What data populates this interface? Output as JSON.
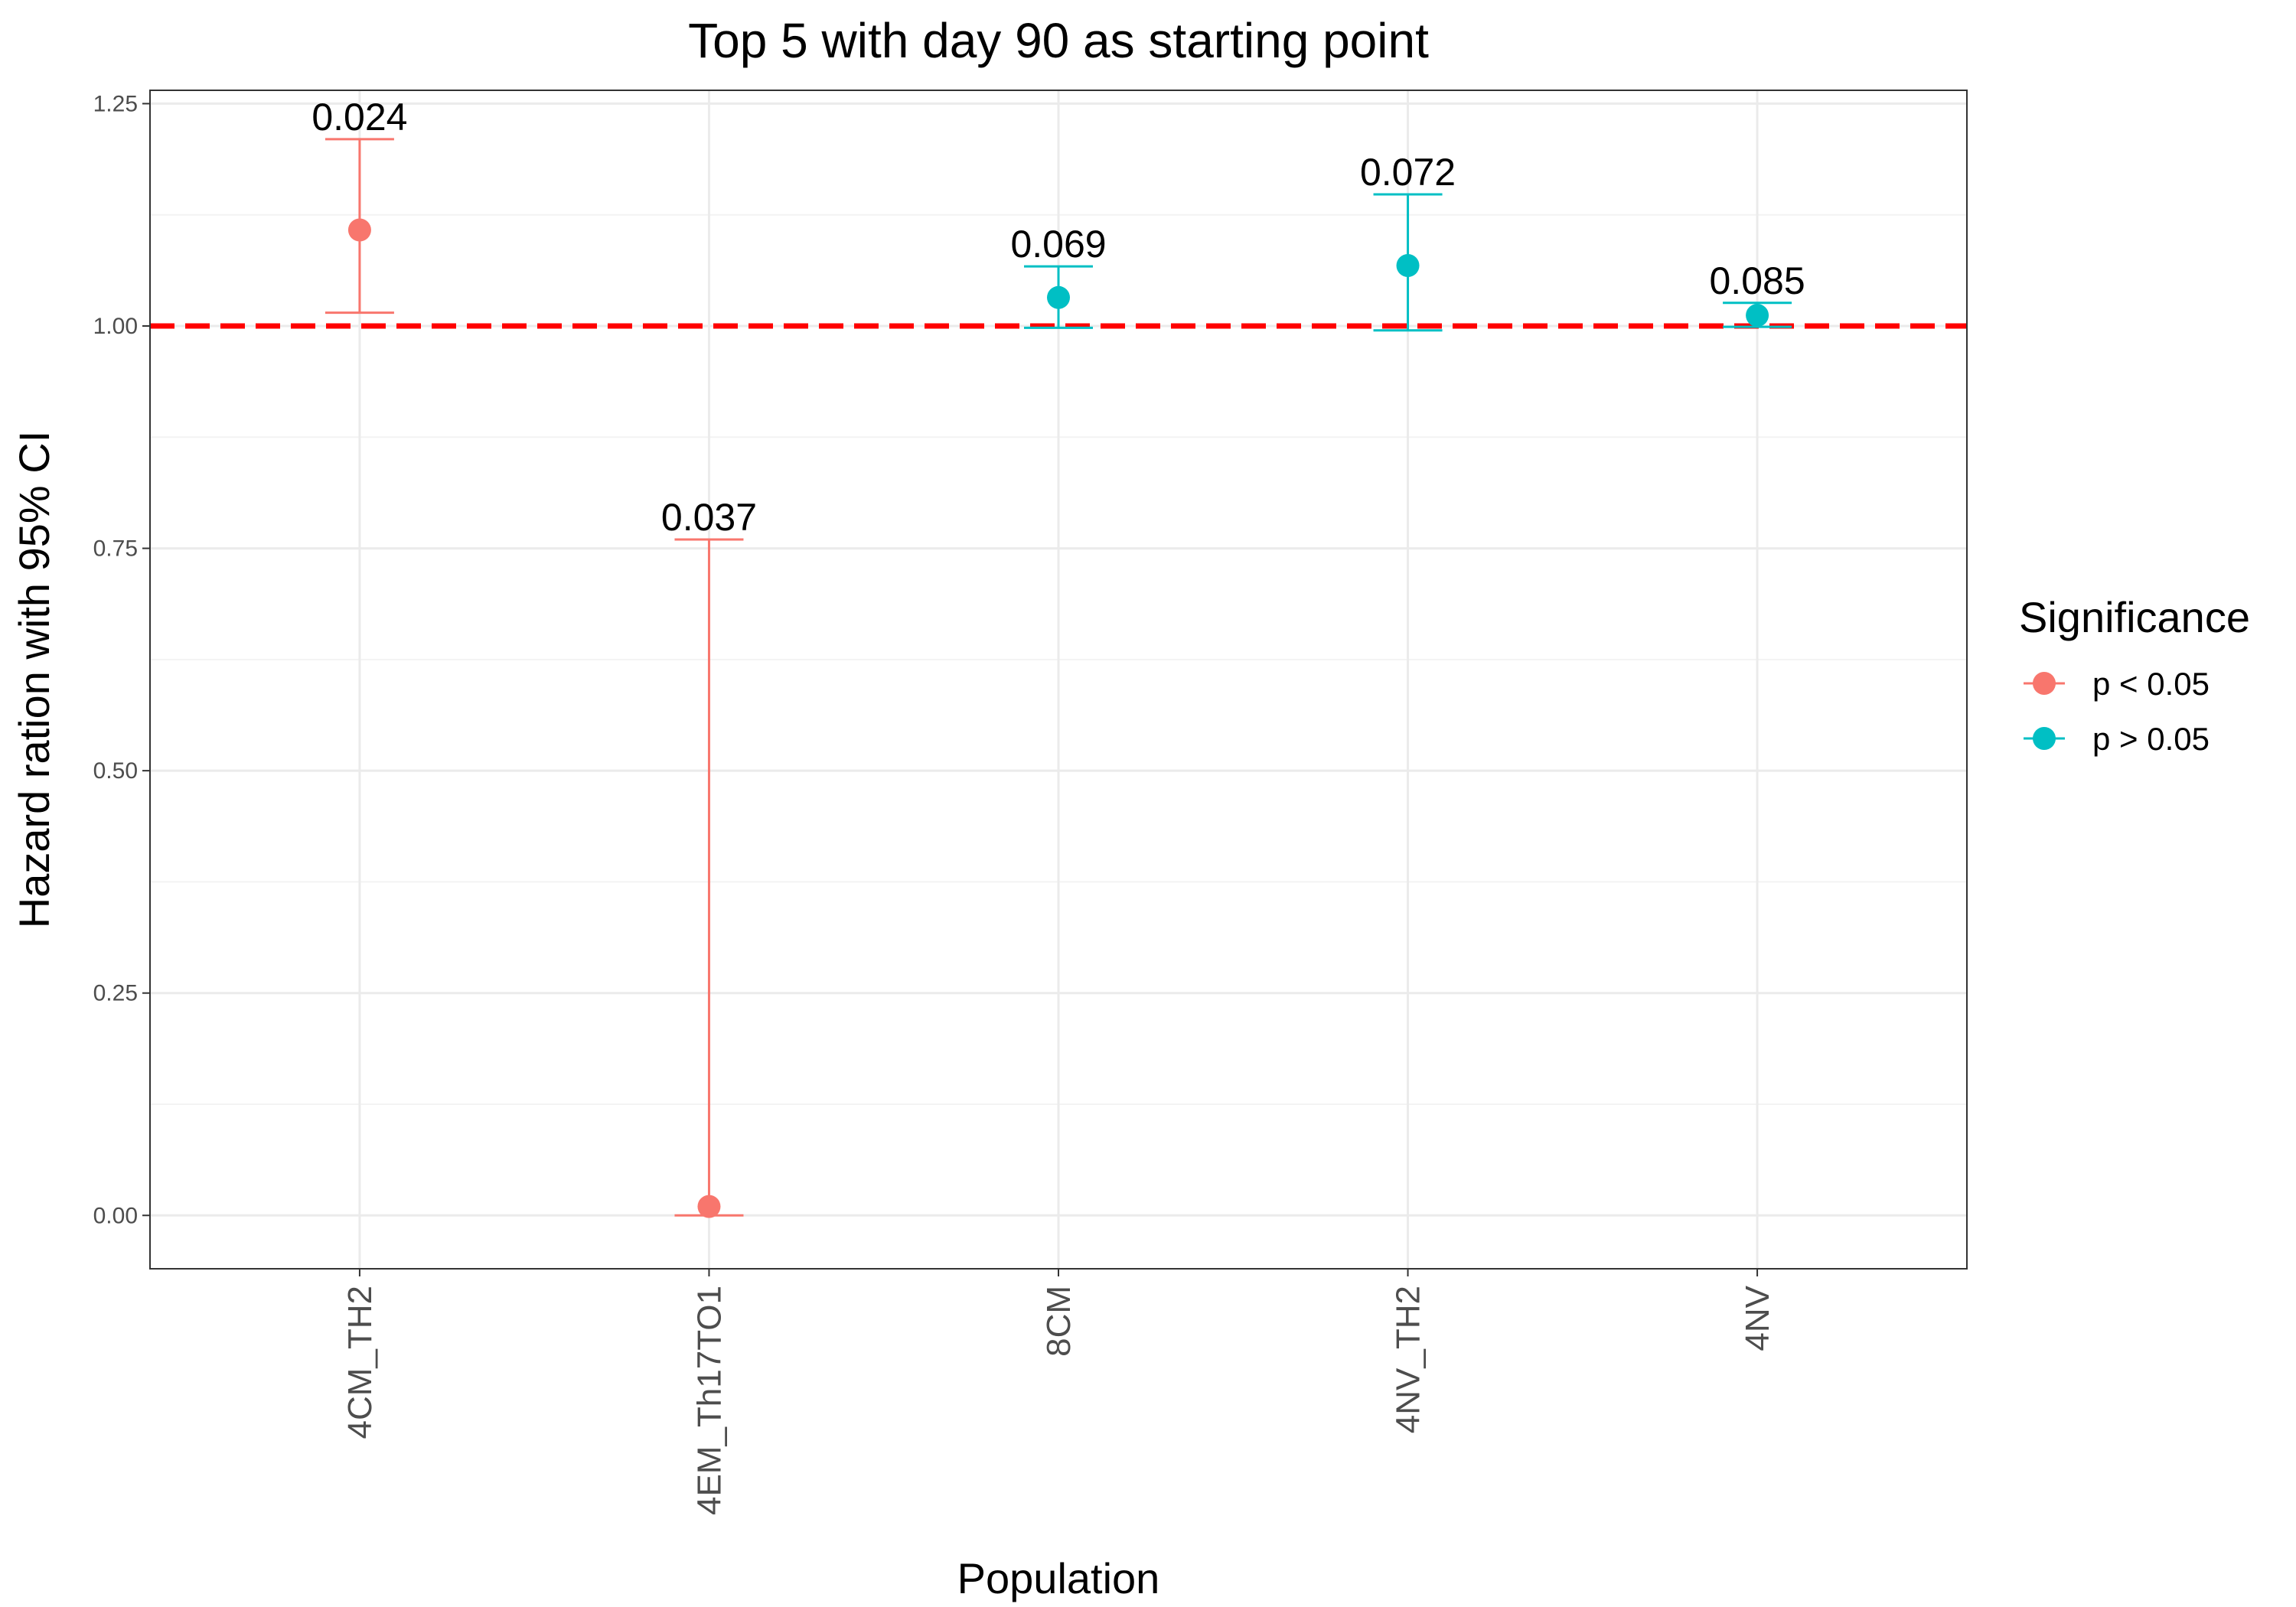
{
  "chart_data": {
    "type": "scatter",
    "title": "Top 5 with day 90 as starting point",
    "xlabel": "Population",
    "ylabel": "Hazard ration with 95% CI",
    "categories": [
      "4CM_TH2",
      "4EM_Th17TO1",
      "8CM",
      "4NV_TH2",
      "4NV"
    ],
    "ylim": [
      -0.06,
      1.265
    ],
    "yticks": [
      "0.00",
      "0.25",
      "0.50",
      "0.75",
      "1.00",
      "1.25"
    ],
    "ytick_values": [
      0,
      0.25,
      0.5,
      0.75,
      1.0,
      1.25
    ],
    "grid": true,
    "reference_line": {
      "y": 1.0,
      "color": "#ff0000",
      "style": "dashed"
    },
    "points": [
      {
        "category": "4CM_TH2",
        "hr": 1.108,
        "lower": 1.015,
        "upper": 1.21,
        "label": "0.024",
        "group": "p < 0.05"
      },
      {
        "category": "4EM_Th17TO1",
        "hr": 0.01,
        "lower": 0.0,
        "upper": 0.76,
        "label": "0.037",
        "group": "p < 0.05"
      },
      {
        "category": "8CM",
        "hr": 1.032,
        "lower": 0.998,
        "upper": 1.067,
        "label": "0.069",
        "group": "p > 0.05"
      },
      {
        "category": "4NV_TH2",
        "hr": 1.068,
        "lower": 0.995,
        "upper": 1.148,
        "label": "0.072",
        "group": "p > 0.05"
      },
      {
        "category": "4NV",
        "hr": 1.012,
        "lower": 0.999,
        "upper": 1.026,
        "label": "0.085",
        "group": "p > 0.05"
      }
    ],
    "legend": {
      "title": "Significance",
      "position": "right",
      "entries": [
        {
          "label": "p < 0.05",
          "color": "#F8766D"
        },
        {
          "label": "p > 0.05",
          "color": "#00BFC4"
        }
      ]
    }
  }
}
